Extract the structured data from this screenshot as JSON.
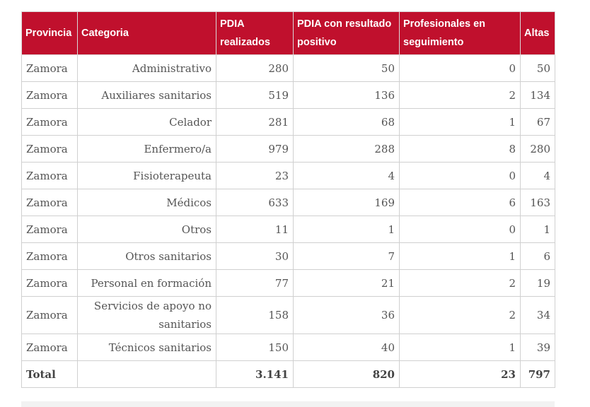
{
  "header": {
    "provincia": "Provincia",
    "categoria": "Categoria",
    "pdia_realizados": "PDIA realizados",
    "pdia_positivo": "PDIA con resultado positivo",
    "profesionales": "Profesionales en seguimiento",
    "altas": "Altas"
  },
  "rows": [
    {
      "provincia": "Zamora",
      "categoria": "Administrativo",
      "pdia": "280",
      "positivo": "50",
      "seguimiento": "0",
      "altas": "50"
    },
    {
      "provincia": "Zamora",
      "categoria": "Auxiliares sanitarios",
      "pdia": "519",
      "positivo": "136",
      "seguimiento": "2",
      "altas": "134"
    },
    {
      "provincia": "Zamora",
      "categoria": "Celador",
      "pdia": "281",
      "positivo": "68",
      "seguimiento": "1",
      "altas": "67"
    },
    {
      "provincia": "Zamora",
      "categoria": "Enfermero/a",
      "pdia": "979",
      "positivo": "288",
      "seguimiento": "8",
      "altas": "280"
    },
    {
      "provincia": "Zamora",
      "categoria": "Fisioterapeuta",
      "pdia": "23",
      "positivo": "4",
      "seguimiento": "0",
      "altas": "4"
    },
    {
      "provincia": "Zamora",
      "categoria": "Médicos",
      "pdia": "633",
      "positivo": "169",
      "seguimiento": "6",
      "altas": "163"
    },
    {
      "provincia": "Zamora",
      "categoria": "Otros",
      "pdia": "11",
      "positivo": "1",
      "seguimiento": "0",
      "altas": "1"
    },
    {
      "provincia": "Zamora",
      "categoria": "Otros sanitarios",
      "pdia": "30",
      "positivo": "7",
      "seguimiento": "1",
      "altas": "6"
    },
    {
      "provincia": "Zamora",
      "categoria": "Personal en formación",
      "pdia": "77",
      "positivo": "21",
      "seguimiento": "2",
      "altas": "19"
    },
    {
      "provincia": "Zamora",
      "categoria": "Servicios de apoyo no sanitarios",
      "pdia": "158",
      "positivo": "36",
      "seguimiento": "2",
      "altas": "34"
    },
    {
      "provincia": "Zamora",
      "categoria": "Técnicos sanitarios",
      "pdia": "150",
      "positivo": "40",
      "seguimiento": "1",
      "altas": "39"
    }
  ],
  "total": {
    "label": "Total",
    "pdia": "3.141",
    "positivo": "820",
    "seguimiento": "23",
    "altas": "797"
  },
  "colors": {
    "header_bg": "#c0102d",
    "header_text": "#ffffff",
    "border": "#d0d0d0"
  }
}
